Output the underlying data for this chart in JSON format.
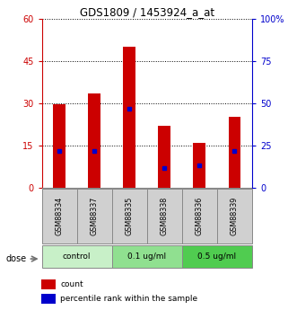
{
  "title": "GDS1809 / 1453924_a_at",
  "samples": [
    "GSM88334",
    "GSM88337",
    "GSM88335",
    "GSM88338",
    "GSM88336",
    "GSM88339"
  ],
  "red_values": [
    29.5,
    33.5,
    50,
    22,
    16,
    25
  ],
  "blue_values": [
    13,
    13,
    28,
    7,
    8,
    13
  ],
  "dose_groups": [
    {
      "label": "control",
      "cols": [
        0,
        1
      ],
      "color": "#c8f0c8"
    },
    {
      "label": "0.1 ug/ml",
      "cols": [
        2,
        3
      ],
      "color": "#90e090"
    },
    {
      "label": "0.5 ug/ml",
      "cols": [
        4,
        5
      ],
      "color": "#50cc50"
    }
  ],
  "ylim_left": [
    0,
    60
  ],
  "ylim_right": [
    0,
    100
  ],
  "yticks_left": [
    0,
    15,
    30,
    45,
    60
  ],
  "yticks_right": [
    0,
    25,
    50,
    75,
    100
  ],
  "bar_color": "#cc0000",
  "marker_color": "#0000cc",
  "label_bg": "#d0d0d0",
  "grid_color": "#000000"
}
